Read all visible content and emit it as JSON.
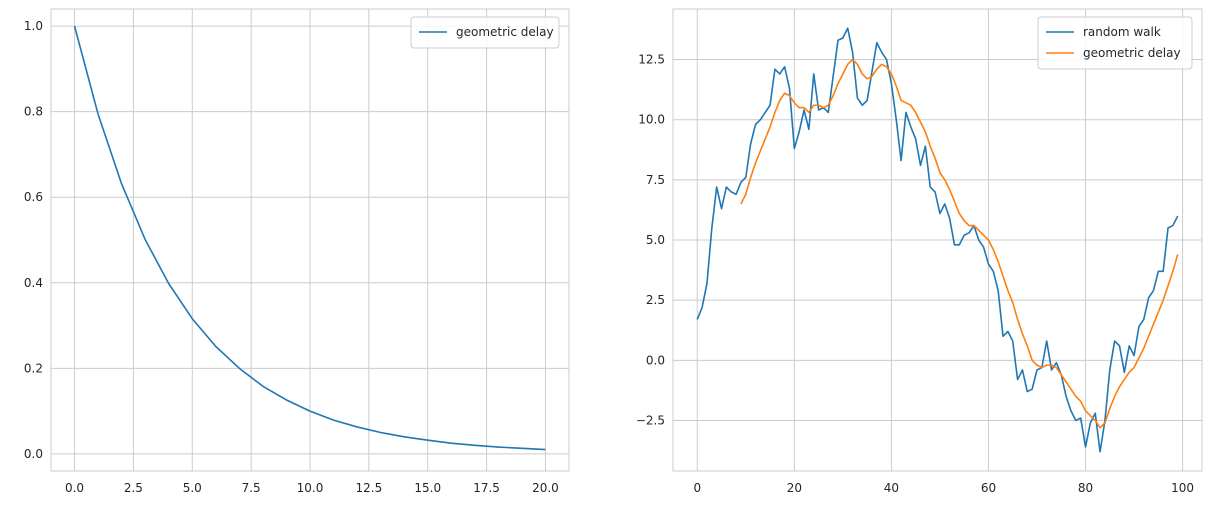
{
  "chart_data": [
    {
      "type": "line",
      "xlim": [
        -1.0,
        21.0
      ],
      "ylim": [
        -0.04,
        1.04
      ],
      "xticks": [
        0.0,
        2.5,
        5.0,
        7.5,
        10.0,
        12.5,
        15.0,
        17.5,
        20.0
      ],
      "xtick_labels": [
        "0.0",
        "2.5",
        "5.0",
        "7.5",
        "10.0",
        "12.5",
        "15.0",
        "17.5",
        "20.0"
      ],
      "yticks": [
        0.0,
        0.2,
        0.4,
        0.6,
        0.8,
        1.0
      ],
      "ytick_labels": [
        "0.0",
        "0.2",
        "0.4",
        "0.6",
        "0.8",
        "1.0"
      ],
      "grid": true,
      "legend_position": "top-right",
      "series": [
        {
          "name": "geometric delay",
          "color": "#1f77b4",
          "x": [
            0,
            1,
            2,
            3,
            4,
            5,
            6,
            7,
            8,
            9,
            10,
            11,
            12,
            13,
            14,
            15,
            16,
            17,
            18,
            19,
            20
          ],
          "y": [
            1.0,
            0.794,
            0.631,
            0.501,
            0.398,
            0.316,
            0.251,
            0.2,
            0.158,
            0.126,
            0.1,
            0.079,
            0.063,
            0.05,
            0.04,
            0.032,
            0.025,
            0.02,
            0.016,
            0.013,
            0.01
          ]
        }
      ]
    },
    {
      "type": "line",
      "xlim": [
        -5.0,
        104.0
      ],
      "ylim": [
        -4.6,
        14.6
      ],
      "xticks": [
        0,
        20,
        40,
        60,
        80,
        100
      ],
      "xtick_labels": [
        "0",
        "20",
        "40",
        "60",
        "80",
        "100"
      ],
      "yticks": [
        -2.5,
        0.0,
        2.5,
        5.0,
        7.5,
        10.0,
        12.5
      ],
      "ytick_labels": [
        "−2.5",
        "0.0",
        "2.5",
        "5.0",
        "7.5",
        "10.0",
        "12.5"
      ],
      "grid": true,
      "legend_position": "top-right",
      "series": [
        {
          "name": "random walk",
          "color": "#1f77b4",
          "x": [
            0,
            1,
            2,
            3,
            4,
            5,
            6,
            7,
            8,
            9,
            10,
            11,
            12,
            13,
            14,
            15,
            16,
            17,
            18,
            19,
            20,
            21,
            22,
            23,
            24,
            25,
            26,
            27,
            28,
            29,
            30,
            31,
            32,
            33,
            34,
            35,
            36,
            37,
            38,
            39,
            40,
            41,
            42,
            43,
            44,
            45,
            46,
            47,
            48,
            49,
            50,
            51,
            52,
            53,
            54,
            55,
            56,
            57,
            58,
            59,
            60,
            61,
            62,
            63,
            64,
            65,
            66,
            67,
            68,
            69,
            70,
            71,
            72,
            73,
            74,
            75,
            76,
            77,
            78,
            79,
            80,
            81,
            82,
            83,
            84,
            85,
            86,
            87,
            88,
            89,
            90,
            91,
            92,
            93,
            94,
            95,
            96,
            97,
            98,
            99
          ],
          "y": [
            1.7,
            2.2,
            3.2,
            5.5,
            7.2,
            6.3,
            7.2,
            7.0,
            6.9,
            7.4,
            7.6,
            9.0,
            9.8,
            10.0,
            10.3,
            10.6,
            12.1,
            11.9,
            12.2,
            11.3,
            8.8,
            9.5,
            10.4,
            9.6,
            11.9,
            10.4,
            10.5,
            10.3,
            11.8,
            13.3,
            13.4,
            13.8,
            12.8,
            10.9,
            10.6,
            10.8,
            12.0,
            13.2,
            12.8,
            12.5,
            11.5,
            10.0,
            8.3,
            10.3,
            9.7,
            9.2,
            8.1,
            8.9,
            7.2,
            7.0,
            6.1,
            6.5,
            5.9,
            4.8,
            4.8,
            5.2,
            5.3,
            5.6,
            5.0,
            4.7,
            4.0,
            3.7,
            2.9,
            1.0,
            1.2,
            0.8,
            -0.8,
            -0.4,
            -1.3,
            -1.2,
            -0.4,
            -0.3,
            0.8,
            -0.4,
            -0.1,
            -0.6,
            -1.5,
            -2.1,
            -2.5,
            -2.4,
            -3.6,
            -2.6,
            -2.2,
            -3.8,
            -2.5,
            -0.4,
            0.8,
            0.6,
            -0.5,
            0.6,
            0.2,
            1.4,
            1.7,
            2.6,
            2.9,
            3.7,
            3.7,
            5.5,
            5.6,
            6.0
          ]
        },
        {
          "name": "geometric delay",
          "color": "#ff7f0e",
          "x": [
            9,
            10,
            11,
            12,
            13,
            14,
            15,
            16,
            17,
            18,
            19,
            20,
            21,
            22,
            23,
            24,
            25,
            26,
            27,
            28,
            29,
            30,
            31,
            32,
            33,
            34,
            35,
            36,
            37,
            38,
            39,
            40,
            41,
            42,
            43,
            44,
            45,
            46,
            47,
            48,
            49,
            50,
            51,
            52,
            53,
            54,
            55,
            56,
            57,
            58,
            59,
            60,
            61,
            62,
            63,
            64,
            65,
            66,
            67,
            68,
            69,
            70,
            71,
            72,
            73,
            74,
            75,
            76,
            77,
            78,
            79,
            80,
            81,
            82,
            83,
            84,
            85,
            86,
            87,
            88,
            89,
            90,
            91,
            92,
            93,
            94,
            95,
            96,
            97,
            98,
            99
          ],
          "y": [
            6.5,
            6.9,
            7.6,
            8.2,
            8.7,
            9.2,
            9.7,
            10.3,
            10.8,
            11.1,
            11.0,
            10.7,
            10.5,
            10.5,
            10.3,
            10.6,
            10.6,
            10.5,
            10.6,
            11.0,
            11.5,
            11.9,
            12.3,
            12.5,
            12.3,
            11.9,
            11.7,
            11.8,
            12.1,
            12.3,
            12.2,
            11.9,
            11.4,
            10.8,
            10.7,
            10.6,
            10.3,
            9.9,
            9.5,
            8.9,
            8.4,
            7.8,
            7.5,
            7.1,
            6.6,
            6.1,
            5.8,
            5.6,
            5.6,
            5.4,
            5.2,
            5.0,
            4.6,
            4.1,
            3.5,
            2.9,
            2.4,
            1.7,
            1.1,
            0.6,
            0.0,
            -0.2,
            -0.3,
            -0.2,
            -0.2,
            -0.3,
            -0.6,
            -0.9,
            -1.2,
            -1.5,
            -1.7,
            -2.1,
            -2.3,
            -2.5,
            -2.8,
            -2.6,
            -2.0,
            -1.5,
            -1.1,
            -0.8,
            -0.5,
            -0.3,
            0.1,
            0.5,
            1.0,
            1.5,
            2.0,
            2.5,
            3.1,
            3.7,
            4.4
          ]
        }
      ]
    }
  ]
}
